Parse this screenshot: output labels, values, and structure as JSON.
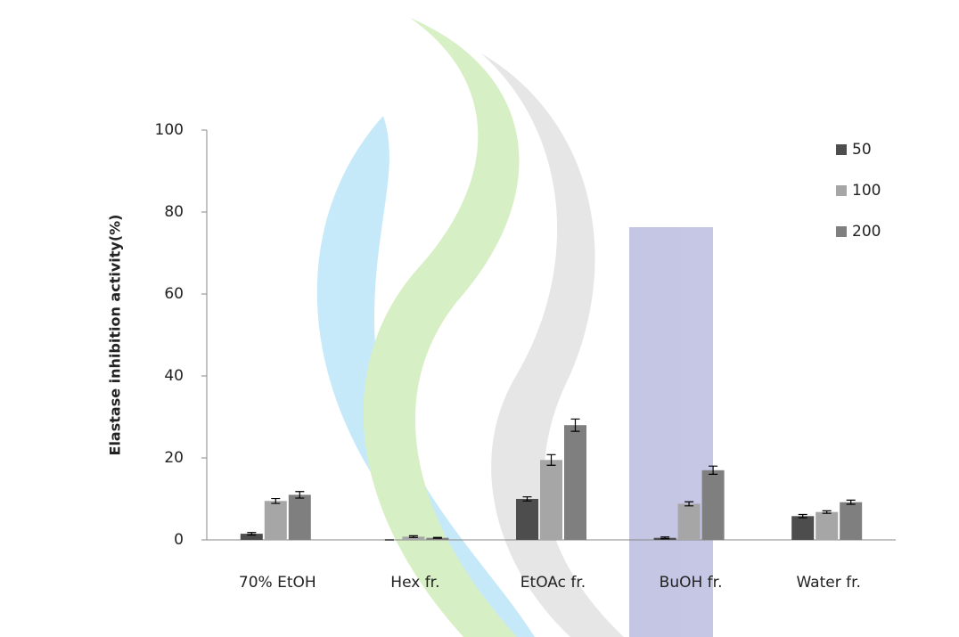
{
  "chart_data": {
    "type": "bar",
    "y_label": "Elastase inhibition activity(%)",
    "categories": [
      "70% EtOH",
      "Hex fr.",
      "EtOAc fr.",
      "BuOH fr.",
      "Water fr."
    ],
    "series": [
      {
        "name": "50",
        "color": "#4d4d4d",
        "values": [
          1.5,
          0,
          10,
          0.5,
          5.8
        ],
        "errors": [
          0.3,
          0,
          0.5,
          0.2,
          0.4
        ]
      },
      {
        "name": "100",
        "color": "#a6a6a6",
        "values": [
          9.5,
          0.8,
          19.5,
          8.8,
          6.8
        ],
        "errors": [
          0.6,
          0.2,
          1.3,
          0.5,
          0.3
        ]
      },
      {
        "name": "200",
        "color": "#7f7f7f",
        "values": [
          11,
          0.5,
          28,
          17,
          9.2
        ],
        "errors": [
          0.8,
          0.1,
          1.5,
          1.0,
          0.5
        ]
      }
    ],
    "ylim": [
      0,
      100
    ],
    "yticks": [
      0,
      20,
      40,
      60,
      80,
      100
    ],
    "grid": false,
    "legend": "top-right"
  }
}
